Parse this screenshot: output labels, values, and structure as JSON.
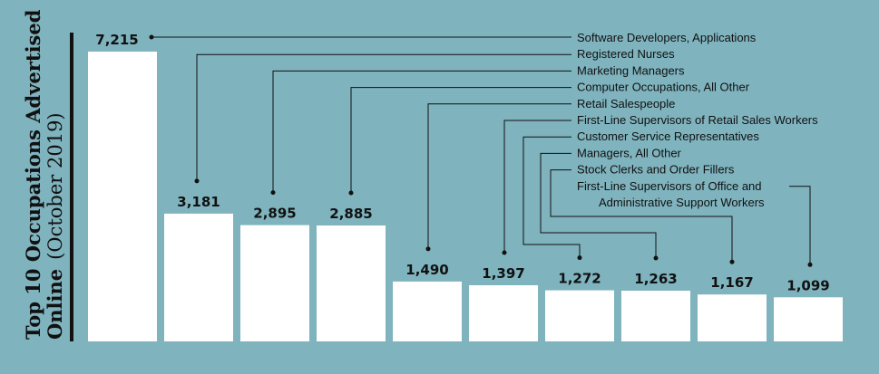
{
  "chart_data": {
    "type": "bar",
    "title_line1": "Top 10 Occupations Advertised",
    "title_line2_main": "Online",
    "title_line2_sub": "(October 2019)",
    "categories": [
      "Software Developers, Applications",
      "Registered Nurses",
      "Marketing Managers",
      "Computer Occupations, All Other",
      "Retail Salespeople",
      "First-Line Supervisors of Retail Sales Workers",
      "Customer Service Representatives",
      "Managers, All Other",
      "Stock Clerks and Order Fillers",
      "First-Line Supervisors of Office and Administrative Support Workers"
    ],
    "category_lines": [
      [
        "Software Developers, Applications"
      ],
      [
        "Registered Nurses"
      ],
      [
        "Marketing Managers"
      ],
      [
        "Computer Occupations, All Other"
      ],
      [
        "Retail Salespeople"
      ],
      [
        "First-Line Supervisors of Retail Sales Workers"
      ],
      [
        "Customer Service Representatives"
      ],
      [
        "Managers, All Other"
      ],
      [
        "Stock Clerks and Order Fillers"
      ],
      [
        "First-Line Supervisors of Office and",
        "Administrative Support Workers"
      ]
    ],
    "values": [
      7215,
      3181,
      2895,
      2885,
      1490,
      1397,
      1272,
      1263,
      1167,
      1099
    ],
    "value_labels": [
      "7,215",
      "3,181",
      "2,895",
      "2,885",
      "1,490",
      "1,397",
      "1,272",
      "1,263",
      "1,167",
      "1,099"
    ],
    "ylim": [
      0,
      7215
    ],
    "grid": false,
    "legend": "right"
  },
  "colors": {
    "background": "#7fb3be",
    "bar": "#ffffff",
    "text": "#111111",
    "leader": "#111111",
    "axis": "#111111"
  }
}
